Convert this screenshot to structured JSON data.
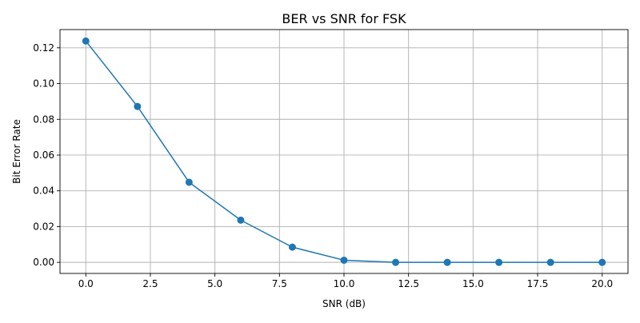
{
  "chart_data": {
    "type": "line",
    "title": "BER vs SNR for FSK",
    "xlabel": "SNR (dB)",
    "ylabel": "Bit Error Rate",
    "xlim": [
      -1.0,
      21.0
    ],
    "ylim": [
      -0.0062,
      0.1302
    ],
    "xticks": [
      0.0,
      2.5,
      5.0,
      7.5,
      10.0,
      12.5,
      15.0,
      17.5,
      20.0
    ],
    "xtick_labels": [
      "0.0",
      "2.5",
      "5.0",
      "7.5",
      "10.0",
      "12.5",
      "15.0",
      "17.5",
      "20.0"
    ],
    "yticks": [
      0.0,
      0.02,
      0.04,
      0.06,
      0.08,
      0.1,
      0.12
    ],
    "ytick_labels": [
      "0.00",
      "0.02",
      "0.04",
      "0.06",
      "0.08",
      "0.10",
      "0.12"
    ],
    "grid": true,
    "series": [
      {
        "color": "#1f77b4",
        "marker": "circle",
        "x": [
          0,
          2,
          4,
          6,
          8,
          10,
          12,
          14,
          16,
          18,
          20
        ],
        "y": [
          0.1238,
          0.0872,
          0.0448,
          0.0236,
          0.0085,
          0.0012,
          0.0,
          0.0,
          0.0,
          0.0,
          0.0
        ]
      }
    ]
  }
}
